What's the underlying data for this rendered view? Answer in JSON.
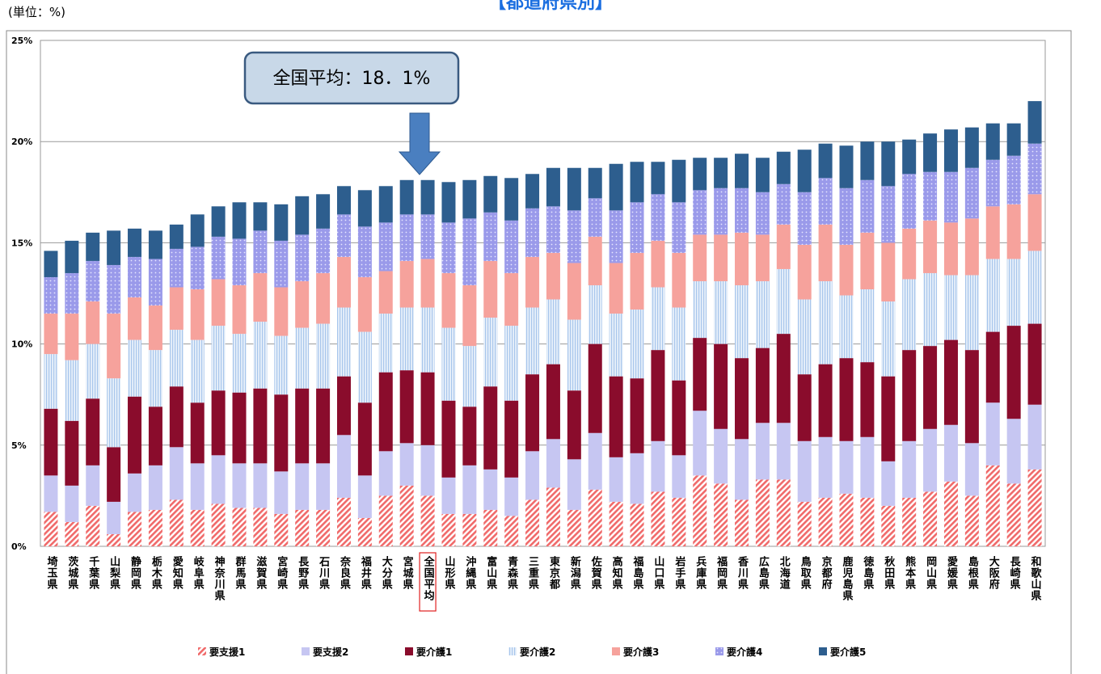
{
  "chart_data": {
    "type": "stacked_bar",
    "title": "【都道府県別】",
    "unit_label": "(単位：%)",
    "callout": "全国平均：18．1%",
    "categories": [
      "埼玉県",
      "茨城県",
      "千葉県",
      "山梨県",
      "静岡県",
      "栃木県",
      "愛知県",
      "岐阜県",
      "神奈川県",
      "群馬県",
      "滋賀県",
      "宮崎県",
      "長野県",
      "石川県",
      "奈良県",
      "福井県",
      "大分県",
      "宮城県",
      "全国平均",
      "山形県",
      "沖縄県",
      "富山県",
      "青森県",
      "三重県",
      "東京都",
      "新潟県",
      "佐賀県",
      "高知県",
      "福島県",
      "山口県",
      "岩手県",
      "兵庫県",
      "福岡県",
      "香川県",
      "広島県",
      "北海道",
      "鳥取県",
      "京都府",
      "鹿児島県",
      "徳島県",
      "秋田県",
      "熊本県",
      "岡山県",
      "愛媛県",
      "島根県",
      "大阪府",
      "長崎県",
      "和歌山県"
    ],
    "highlight_category": 18,
    "series": [
      {
        "name": "要支援1",
        "color": "#f06a6a",
        "pattern": "diagonal",
        "values": [
          1.7,
          1.2,
          2.0,
          0.6,
          1.7,
          1.8,
          2.3,
          1.8,
          2.1,
          1.9,
          1.9,
          1.6,
          1.8,
          1.8,
          2.4,
          1.4,
          2.5,
          3.0,
          2.5,
          1.6,
          1.6,
          1.8,
          1.5,
          2.3,
          2.9,
          1.8,
          2.8,
          2.2,
          2.1,
          2.7,
          2.4,
          3.5,
          3.1,
          2.3,
          3.3,
          3.3,
          2.2,
          2.4,
          2.6,
          2.4,
          2.0,
          2.4,
          2.7,
          3.2,
          2.5,
          4.0,
          3.1,
          3.8
        ]
      },
      {
        "name": "要支援2",
        "color": "#c6c6f2",
        "pattern": "solid",
        "values": [
          1.8,
          1.8,
          2.0,
          1.6,
          1.9,
          2.2,
          2.6,
          2.3,
          2.4,
          2.2,
          2.2,
          2.1,
          2.3,
          2.3,
          3.1,
          2.1,
          2.2,
          2.1,
          2.5,
          1.8,
          2.4,
          2.0,
          1.9,
          2.4,
          2.4,
          2.5,
          2.8,
          2.2,
          2.5,
          2.5,
          2.1,
          3.2,
          2.7,
          3.0,
          2.8,
          2.8,
          3.0,
          3.0,
          2.6,
          3.0,
          2.2,
          2.8,
          3.1,
          2.8,
          2.6,
          3.1,
          3.2,
          3.2
        ]
      },
      {
        "name": "要介護1",
        "color": "#8a0c2c",
        "pattern": "solid",
        "values": [
          3.3,
          3.2,
          3.3,
          2.7,
          3.8,
          2.9,
          3.0,
          3.0,
          3.2,
          3.5,
          3.7,
          3.8,
          3.7,
          3.7,
          2.9,
          3.6,
          3.9,
          3.6,
          3.6,
          3.8,
          2.9,
          4.1,
          3.8,
          3.8,
          3.7,
          3.4,
          4.4,
          4.0,
          3.7,
          4.5,
          3.7,
          3.6,
          4.2,
          4.0,
          3.7,
          4.4,
          3.3,
          3.6,
          4.1,
          3.7,
          4.2,
          4.5,
          4.1,
          4.2,
          4.6,
          3.5,
          4.6,
          4.0
        ]
      },
      {
        "name": "要介護2",
        "color": "#b4cff0",
        "pattern": "vertical",
        "values": [
          2.7,
          3.0,
          2.7,
          3.4,
          2.8,
          2.8,
          2.8,
          3.1,
          3.2,
          2.9,
          3.3,
          2.9,
          3.0,
          3.2,
          3.4,
          3.5,
          2.9,
          3.1,
          3.2,
          3.6,
          3.0,
          3.4,
          3.7,
          3.3,
          3.2,
          3.5,
          2.9,
          3.1,
          3.4,
          3.1,
          3.6,
          2.8,
          3.1,
          3.6,
          3.3,
          3.2,
          3.7,
          4.1,
          3.1,
          3.6,
          3.7,
          3.5,
          3.6,
          3.2,
          3.7,
          3.6,
          3.3,
          3.6
        ]
      },
      {
        "name": "要介護3",
        "color": "#f6a29c",
        "pattern": "solid",
        "values": [
          2.0,
          2.3,
          2.1,
          3.2,
          2.1,
          2.2,
          2.1,
          2.5,
          2.3,
          2.4,
          2.4,
          2.4,
          2.3,
          2.5,
          2.5,
          2.7,
          2.1,
          2.3,
          2.4,
          2.7,
          3.0,
          2.8,
          2.6,
          2.5,
          2.3,
          2.8,
          2.4,
          2.5,
          2.8,
          2.3,
          2.7,
          2.3,
          2.3,
          2.6,
          2.3,
          2.2,
          2.7,
          2.8,
          2.5,
          2.8,
          2.9,
          2.5,
          2.6,
          2.6,
          2.8,
          2.6,
          2.7,
          2.8
        ]
      },
      {
        "name": "要介護4",
        "color": "#9a9aea",
        "pattern": "dots",
        "values": [
          1.8,
          2.0,
          2.0,
          2.4,
          2.0,
          2.3,
          1.9,
          2.1,
          2.1,
          2.3,
          2.1,
          2.3,
          2.3,
          2.2,
          2.1,
          2.5,
          2.4,
          2.3,
          2.2,
          2.5,
          3.3,
          2.4,
          2.6,
          2.4,
          2.3,
          2.6,
          1.9,
          2.6,
          2.5,
          2.3,
          2.5,
          2.2,
          2.3,
          2.2,
          2.1,
          2.0,
          2.6,
          2.3,
          2.8,
          2.6,
          2.8,
          2.7,
          2.4,
          2.5,
          2.5,
          2.3,
          2.4,
          2.5
        ]
      },
      {
        "name": "要介護5",
        "color": "#2d5e8e",
        "pattern": "solid",
        "values": [
          1.3,
          1.6,
          1.4,
          1.7,
          1.4,
          1.4,
          1.2,
          1.6,
          1.5,
          1.8,
          1.4,
          1.8,
          1.9,
          1.7,
          1.4,
          1.8,
          1.8,
          1.7,
          1.7,
          2.0,
          1.9,
          1.8,
          2.1,
          1.7,
          1.9,
          2.1,
          1.5,
          2.3,
          2.0,
          1.6,
          2.1,
          1.6,
          1.5,
          1.7,
          1.7,
          1.6,
          2.1,
          1.7,
          2.1,
          1.9,
          2.2,
          1.7,
          1.9,
          2.1,
          2.0,
          1.8,
          1.6,
          2.1
        ]
      }
    ],
    "ylim": [
      0,
      25
    ],
    "yticks": [
      {
        "value": 0,
        "label": "0%"
      },
      {
        "value": 5,
        "label": "5%"
      },
      {
        "value": 10,
        "label": "10%"
      },
      {
        "value": 15,
        "label": "15%"
      },
      {
        "value": 20,
        "label": "20%"
      },
      {
        "value": 25,
        "label": "25%"
      }
    ],
    "grid": true,
    "legend": "bottom"
  }
}
